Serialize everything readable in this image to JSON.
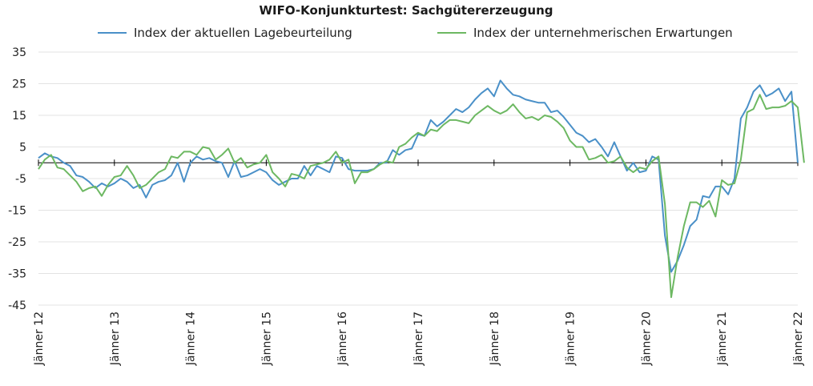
{
  "chart_data": {
    "type": "line",
    "title": "WIFO-Konjunkturtest: Sachgütererzeugung",
    "xlabel": "",
    "ylabel": "",
    "ylim": [
      -45,
      35
    ],
    "yticks": [
      35,
      25,
      15,
      5,
      -5,
      -15,
      -25,
      -35,
      -45
    ],
    "grid": true,
    "legend_position": "top",
    "x_tick_labels": [
      "Jänner 12",
      "Jänner 13",
      "Jänner 14",
      "Jänner 15",
      "Jänner 16",
      "Jänner 17",
      "Jänner 18",
      "Jänner 19",
      "Jänner 20",
      "Jänner 21",
      "Jänner 22"
    ],
    "x_start": "2012-01",
    "x_end": "2022-01",
    "series": [
      {
        "name": "Index der aktuellen Lagebeurteilung",
        "color": "#4a90c8",
        "values": [
          1.5,
          3,
          2,
          1.5,
          0,
          -1,
          -4,
          -4.5,
          -6,
          -8,
          -6.5,
          -7.5,
          -6.5,
          -5,
          -6,
          -8,
          -7,
          -11,
          -7,
          -6,
          -5.5,
          -4,
          0,
          -6,
          0,
          2,
          1,
          1.5,
          0.5,
          0,
          -4.5,
          0.5,
          -4.5,
          -4,
          -3,
          -2,
          -3,
          -5.5,
          -7,
          -6,
          -5,
          -5,
          -1,
          -4,
          -1,
          -2,
          -3,
          2,
          1.5,
          -2,
          -2.5,
          -2.5,
          -2.5,
          -2,
          0,
          0,
          4,
          2.5,
          4,
          4.5,
          9,
          8.5,
          13.5,
          11.5,
          13,
          15,
          17,
          16,
          17.5,
          20,
          22,
          23.5,
          21,
          26,
          23.5,
          21.5,
          21,
          20,
          19.5,
          19,
          19,
          16,
          16.5,
          14.5,
          12,
          9.5,
          8.5,
          6.5,
          7.5,
          5,
          2,
          6.5,
          2,
          -2.5,
          0,
          -3,
          -2.5,
          2,
          1,
          -23,
          -34.5,
          -31,
          -26,
          -20,
          -18,
          -10.5,
          -11,
          -7.5,
          -7.5,
          -10,
          -5,
          14,
          17.5,
          22.5,
          24.5,
          21,
          22,
          23.5,
          19.5,
          22.5,
          0
        ]
      },
      {
        "name": "Index der unternehmerischen Erwartungen",
        "color": "#6db862",
        "values": [
          -2,
          1,
          2.5,
          -1.5,
          -2,
          -4,
          -6,
          -9,
          -8,
          -7.5,
          -10.5,
          -7,
          -4.5,
          -4,
          -1,
          -4,
          -8,
          -7,
          -5,
          -3,
          -2,
          2,
          1.5,
          3.5,
          3.5,
          2.5,
          5,
          4.5,
          1,
          2.5,
          4.5,
          0,
          1.5,
          -1.5,
          -0.5,
          0,
          2.5,
          -3,
          -5,
          -7.5,
          -3.5,
          -4,
          -5,
          -1,
          -0.5,
          0,
          1,
          3.5,
          0,
          1,
          -6.5,
          -3,
          -3,
          -2,
          -0.5,
          0.5,
          0,
          5,
          6,
          8,
          9.5,
          8.5,
          10.5,
          10,
          12,
          13.5,
          13.5,
          13,
          12.5,
          15,
          16.5,
          18,
          16.5,
          15.5,
          16.5,
          18.5,
          16,
          14,
          14.5,
          13.5,
          15,
          14.5,
          13,
          11,
          7,
          5,
          5,
          1,
          1.5,
          2.5,
          0,
          0.5,
          2,
          -1.5,
          -3,
          -1.5,
          -2,
          0.5,
          2,
          -13,
          -42.5,
          -30,
          -20,
          -12.5,
          -12.5,
          -14,
          -12,
          -17,
          -5.5,
          -7,
          -6.5,
          1,
          16,
          17,
          21.5,
          17,
          17.5,
          17.5,
          18,
          19.5,
          17.5,
          0
        ]
      }
    ]
  }
}
